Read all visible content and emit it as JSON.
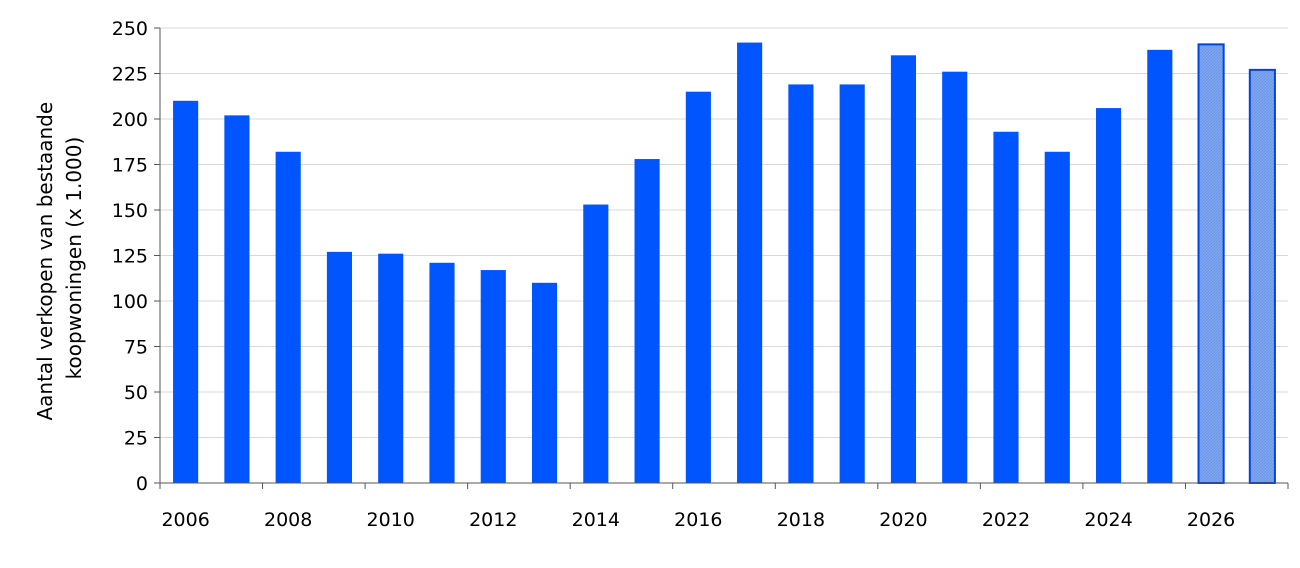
{
  "chart_data": {
    "type": "bar",
    "title": "",
    "xlabel": "",
    "ylabel_lines": [
      "Aantal verkopen van bestaande",
      "koopwoningen (x 1.000)"
    ],
    "ylim": [
      0,
      250
    ],
    "yticks": [
      0,
      25,
      50,
      75,
      100,
      125,
      150,
      175,
      200,
      225,
      250
    ],
    "grid": "horizontal",
    "legend": "none",
    "categories": [
      "2006",
      "2007",
      "2008",
      "2009",
      "2010",
      "2011",
      "2012",
      "2013",
      "2014",
      "2015",
      "2016",
      "2017",
      "2018",
      "2019",
      "2020",
      "2021",
      "2022",
      "2023",
      "2024",
      "2025",
      "2026",
      "2027"
    ],
    "xtick_labels": [
      "2006",
      "2008",
      "2010",
      "2012",
      "2014",
      "2016",
      "2018",
      "2020",
      "2022",
      "2024",
      "2026"
    ],
    "values": [
      210,
      202,
      182,
      127,
      126,
      121,
      117,
      110,
      153,
      178,
      215,
      242,
      219,
      219,
      235,
      226,
      193,
      182,
      206,
      238,
      241,
      227
    ],
    "forecast_categories": [
      "2026",
      "2027"
    ],
    "colors": {
      "bar": "#0055ff",
      "forecast_fill": "#7ea6ee",
      "forecast_stroke": "#0044dd",
      "grid": "#d9d9d9",
      "axis": "#555555"
    }
  }
}
